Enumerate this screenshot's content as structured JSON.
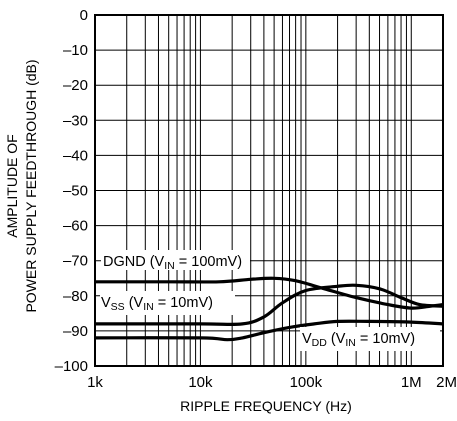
{
  "chart_data": {
    "type": "line",
    "title": "",
    "xlabel": "RIPPLE FREQUENCY (Hz)",
    "ylabel_lines": [
      "AMPLITUDE OF",
      "POWER SUPPLY FEEDTHROUGH (dB)"
    ],
    "x_scale": "log",
    "xlim": [
      1000,
      2000000
    ],
    "ylim": [
      -100,
      0
    ],
    "grid": true,
    "x_ticks": [
      {
        "value": 1000,
        "label": "1k"
      },
      {
        "value": 10000,
        "label": "10k"
      },
      {
        "value": 100000,
        "label": "100k"
      },
      {
        "value": 1000000,
        "label": "1M"
      },
      {
        "value": 2000000,
        "label": "2M"
      }
    ],
    "y_ticks": [
      {
        "value": 0,
        "label": "0"
      },
      {
        "value": -10,
        "label": "–10"
      },
      {
        "value": -20,
        "label": "–20"
      },
      {
        "value": -30,
        "label": "–30"
      },
      {
        "value": -40,
        "label": "–40"
      },
      {
        "value": -50,
        "label": "–50"
      },
      {
        "value": -60,
        "label": "–60"
      },
      {
        "value": -70,
        "label": "–70"
      },
      {
        "value": -80,
        "label": "–80"
      },
      {
        "value": -90,
        "label": "–90"
      },
      {
        "value": -100,
        "label": "–100"
      }
    ],
    "series": [
      {
        "name": "DGND (VIN = 100mV)",
        "label": {
          "main": "DGND (V",
          "sub": "IN",
          "rest": " = 100mV)"
        },
        "points": [
          [
            1000,
            -76
          ],
          [
            5000,
            -76
          ],
          [
            15000,
            -76
          ],
          [
            30000,
            -75.3
          ],
          [
            50000,
            -75
          ],
          [
            80000,
            -75.7
          ],
          [
            150000,
            -78
          ],
          [
            300000,
            -80.5
          ],
          [
            600000,
            -82.5
          ],
          [
            1000000,
            -83.5
          ],
          [
            1500000,
            -83
          ],
          [
            2000000,
            -82.5
          ]
        ]
      },
      {
        "name": "VSS (VIN = 10mV)",
        "label": {
          "main": "V",
          "sub": "SS",
          "rest": " (V",
          "sub2": "IN",
          "rest2": " = 10mV)"
        },
        "points": [
          [
            1000,
            -88
          ],
          [
            10000,
            -88
          ],
          [
            25000,
            -88
          ],
          [
            40000,
            -86
          ],
          [
            60000,
            -82
          ],
          [
            100000,
            -78.5
          ],
          [
            200000,
            -77.3
          ],
          [
            300000,
            -77
          ],
          [
            500000,
            -78
          ],
          [
            800000,
            -80.5
          ],
          [
            1200000,
            -82.5
          ],
          [
            2000000,
            -83
          ]
        ]
      },
      {
        "name": "VDD (VIN = 10mV)",
        "label": {
          "main": "V",
          "sub": "DD",
          "rest": " (V",
          "sub2": "IN",
          "rest2": " = 10mV)"
        },
        "points": [
          [
            1000,
            -92
          ],
          [
            10000,
            -92
          ],
          [
            18000,
            -92.5
          ],
          [
            25000,
            -92
          ],
          [
            40000,
            -90.5
          ],
          [
            70000,
            -89
          ],
          [
            120000,
            -88
          ],
          [
            200000,
            -87.3
          ],
          [
            400000,
            -87.3
          ],
          [
            1000000,
            -87.5
          ],
          [
            2000000,
            -88
          ]
        ]
      }
    ]
  }
}
